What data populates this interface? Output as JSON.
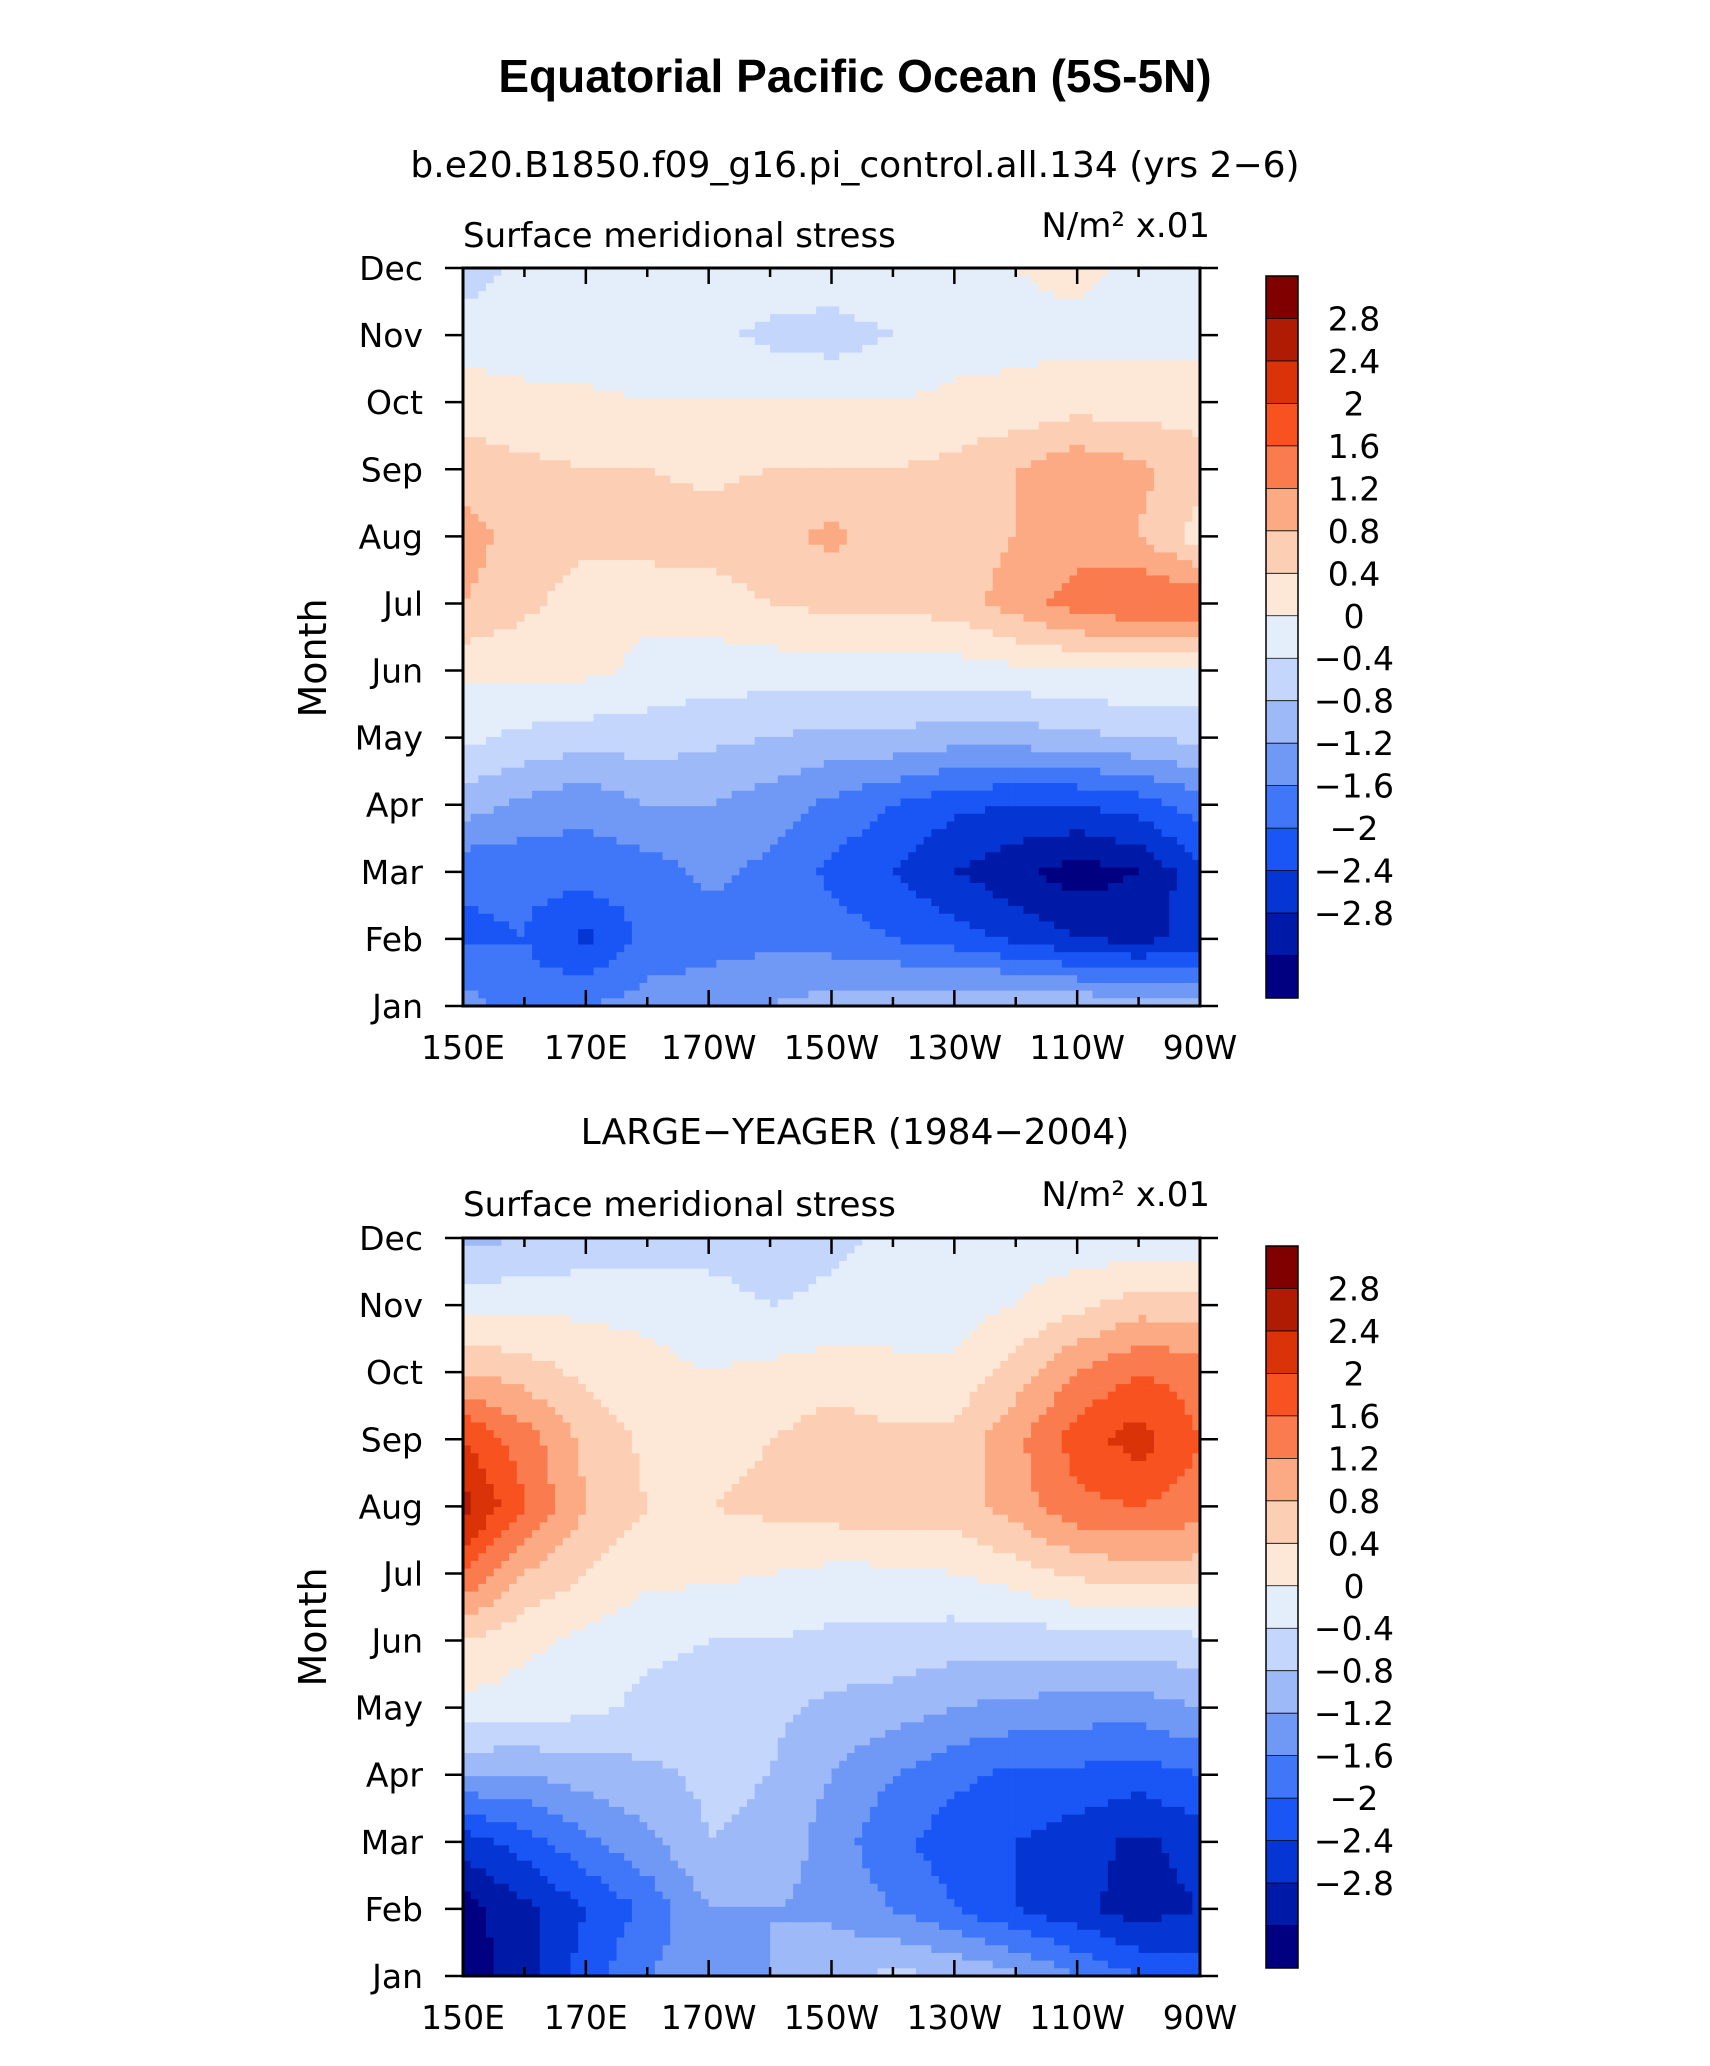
{
  "figure": {
    "title": "Equatorial Pacific Ocean (5S-5N)"
  },
  "chart_data": [
    {
      "type": "heatmap",
      "panel_title": "b.e20.B1850.f09_g16.pi_control.all.134 (yrs 2−6)",
      "left_label": "Surface meridional stress",
      "units_label": "N/m² x.01",
      "ylabel": "Month",
      "xlabel": "",
      "x_ticks": [
        "150E",
        "170E",
        "170W",
        "150W",
        "130W",
        "110W",
        "90W"
      ],
      "y_ticks": [
        "Jan",
        "Feb",
        "Mar",
        "Apr",
        "May",
        "Jun",
        "Jul",
        "Aug",
        "Sep",
        "Oct",
        "Nov",
        "Dec"
      ],
      "x_lon": [
        150,
        160,
        170,
        180,
        190,
        200,
        210,
        220,
        230,
        240,
        250,
        260,
        270
      ],
      "z": [
        [
          -1.0,
          -1.4,
          -1.2,
          -1.0,
          -0.9,
          -0.8,
          -0.6,
          -0.5,
          -0.4,
          -0.3,
          -0.4,
          -0.6,
          -0.7
        ],
        [
          -1.7,
          -1.6,
          -2.1,
          -1.5,
          -1.4,
          -1.3,
          -1.4,
          -1.6,
          -1.8,
          -2.1,
          -2.4,
          -2.5,
          -2.3
        ],
        [
          -1.5,
          -1.5,
          -1.4,
          -1.4,
          -1.1,
          -1.3,
          -1.7,
          -2.0,
          -2.4,
          -2.7,
          -3.0,
          -2.8,
          -2.1
        ],
        [
          -0.6,
          -0.9,
          -1.1,
          -0.8,
          -0.8,
          -1.0,
          -1.3,
          -1.6,
          -1.9,
          -2.0,
          -2.0,
          -1.8,
          -1.4
        ],
        [
          0.1,
          -0.1,
          -0.2,
          -0.2,
          -0.3,
          -0.4,
          -0.5,
          -0.5,
          -0.6,
          -0.6,
          -0.5,
          -0.4,
          -0.3
        ],
        [
          0.5,
          0.5,
          0.5,
          0.3,
          0.2,
          0.2,
          0.2,
          0.2,
          0.2,
          0.3,
          0.4,
          0.4,
          0.3
        ],
        [
          1.2,
          0.9,
          0.6,
          0.5,
          0.6,
          0.8,
          0.9,
          0.9,
          1.0,
          1.4,
          1.8,
          2.0,
          2.0
        ],
        [
          1.4,
          1.0,
          0.9,
          1.0,
          1.0,
          1.1,
          1.3,
          1.0,
          1.0,
          1.2,
          1.4,
          1.2,
          0.6
        ],
        [
          1.0,
          0.9,
          0.8,
          0.8,
          0.7,
          0.8,
          0.8,
          0.8,
          0.9,
          1.2,
          1.5,
          1.3,
          1.0
        ],
        [
          0.6,
          0.5,
          0.5,
          0.4,
          0.4,
          0.4,
          0.4,
          0.4,
          0.5,
          0.5,
          0.6,
          0.6,
          0.6
        ],
        [
          0.2,
          0.2,
          0.1,
          0.1,
          0.1,
          -0.1,
          -0.2,
          0.0,
          0.2,
          0.3,
          0.3,
          0.3,
          0.3
        ],
        [
          -0.2,
          0.1,
          0.2,
          0.2,
          0.2,
          0.3,
          0.3,
          0.4,
          0.4,
          0.4,
          0.5,
          0.3,
          0.3
        ]
      ],
      "colorbar_levels": [
        "2.8",
        "2.4",
        "2",
        "1.6",
        "1.2",
        "0.8",
        "0.4",
        "0",
        "−0.4",
        "−0.8",
        "−1.2",
        "−1.6",
        "−2",
        "−2.4",
        "−2.8"
      ]
    },
    {
      "type": "heatmap",
      "panel_title": "LARGE−YEAGER (1984−2004)",
      "left_label": "Surface meridional stress",
      "units_label": "N/m² x.01",
      "ylabel": "Month",
      "xlabel": "",
      "x_ticks": [
        "150E",
        "170E",
        "170W",
        "150W",
        "130W",
        "110W",
        "90W"
      ],
      "y_ticks": [
        "Jan",
        "Feb",
        "Mar",
        "Apr",
        "May",
        "Jun",
        "Jul",
        "Aug",
        "Sep",
        "Oct",
        "Nov",
        "Dec"
      ],
      "x_lon": [
        150,
        160,
        170,
        180,
        190,
        200,
        210,
        220,
        230,
        240,
        250,
        260,
        270
      ],
      "z": [
        [
          -3.0,
          -2.6,
          -1.8,
          -1.2,
          -1.0,
          -0.8,
          -0.5,
          -0.3,
          -0.4,
          -0.7,
          -1.2,
          -1.6,
          -1.8
        ],
        [
          -3.0,
          -2.5,
          -2.0,
          -1.5,
          -0.8,
          -0.8,
          -0.9,
          -1.2,
          -1.6,
          -2.0,
          -2.3,
          -2.6,
          -2.4
        ],
        [
          -2.2,
          -1.8,
          -1.3,
          -0.9,
          -0.4,
          -0.5,
          -1.0,
          -1.5,
          -1.8,
          -2.0,
          -2.2,
          -2.5,
          -2.2
        ],
        [
          -0.8,
          -0.8,
          -0.6,
          -0.5,
          -0.3,
          -0.4,
          -0.8,
          -1.2,
          -1.5,
          -1.7,
          -1.7,
          -1.8,
          -1.6
        ],
        [
          0.3,
          0.2,
          0.1,
          -0.1,
          -0.2,
          -0.3,
          -0.5,
          -0.6,
          -0.8,
          -0.9,
          -1.0,
          -1.0,
          -0.8
        ],
        [
          0.8,
          0.5,
          0.3,
          0.1,
          0.0,
          0.0,
          -0.1,
          -0.1,
          -0.2,
          -0.2,
          -0.2,
          -0.2,
          -0.1
        ],
        [
          2.0,
          1.2,
          0.8,
          0.5,
          0.5,
          0.4,
          0.3,
          0.3,
          0.4,
          0.6,
          0.9,
          1.0,
          1.0
        ],
        [
          3.0,
          2.0,
          1.2,
          0.8,
          0.8,
          0.9,
          1.0,
          1.1,
          1.0,
          1.4,
          1.9,
          2.0,
          1.8
        ],
        [
          2.4,
          1.8,
          1.1,
          0.7,
          0.6,
          0.8,
          1.0,
          0.9,
          0.9,
          1.5,
          2.2,
          2.6,
          2.0
        ],
        [
          1.2,
          1.0,
          0.7,
          0.5,
          0.4,
          0.5,
          0.6,
          0.5,
          0.5,
          1.0,
          1.6,
          2.0,
          1.8
        ],
        [
          0.2,
          0.3,
          0.3,
          0.3,
          0.2,
          0.0,
          0.1,
          0.2,
          0.2,
          0.4,
          0.7,
          1.0,
          1.0
        ],
        [
          -0.5,
          -0.4,
          -0.3,
          -0.2,
          -0.2,
          -0.3,
          -0.1,
          0.1,
          0.2,
          0.2,
          0.1,
          0.1,
          0.1
        ]
      ],
      "colorbar_levels": [
        "2.8",
        "2.4",
        "2",
        "1.6",
        "1.2",
        "0.8",
        "0.4",
        "0",
        "−0.4",
        "−0.8",
        "−1.2",
        "−1.6",
        "−2",
        "−2.4",
        "−2.8"
      ]
    }
  ],
  "colors": {
    "levels": [
      "#000080",
      "#001aa8",
      "#0536d4",
      "#1a55f5",
      "#3f77f8",
      "#7099f5",
      "#9eb9f8",
      "#c4d6fb",
      "#e4eefb",
      "#fde8d8",
      "#fccfb4",
      "#fcaa84",
      "#f97b4e",
      "#f7521f",
      "#db3308",
      "#b01c03",
      "#800000"
    ]
  }
}
